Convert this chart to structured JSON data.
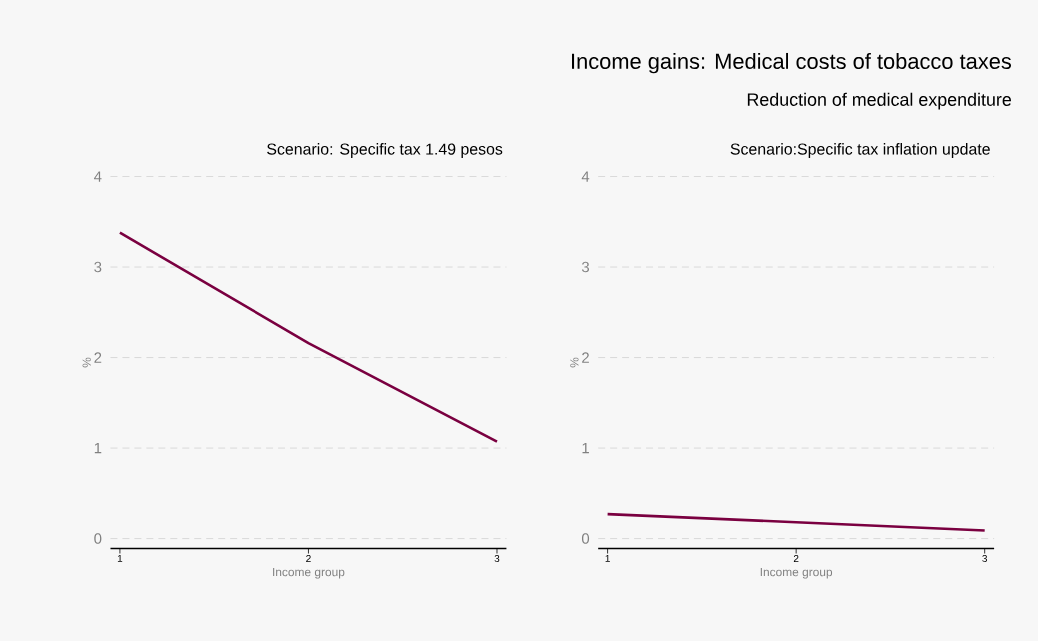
{
  "chart_data": [
    {
      "type": "line",
      "title": "Scenario: Specific tax 1.49 pesos",
      "annotations": [
        "Income gains: Medical costs of tobacco taxes",
        "Reduction of medical expenditure"
      ],
      "xlabel": "Income group",
      "ylabel": "%",
      "x": [
        1,
        2,
        3
      ],
      "xlim": [
        0.95,
        3.05
      ],
      "xticks": [
        1,
        2,
        3
      ],
      "ylim": [
        -0.11,
        4
      ],
      "yticks": [
        0,
        1,
        2,
        3,
        4
      ],
      "grid": "y",
      "line_style": "solid",
      "marker": "none",
      "series": [
        {
          "color": "#7a0040",
          "values": [
            3.38,
            2.16,
            1.07
          ]
        }
      ]
    },
    {
      "type": "line",
      "title": "Scenario:Specific tax inflation update",
      "xlabel": "Income group",
      "ylabel": "%",
      "x": [
        1,
        2,
        3
      ],
      "xlim": [
        0.95,
        3.05
      ],
      "xticks": [
        1,
        2,
        3
      ],
      "ylim": [
        -0.11,
        4
      ],
      "yticks": [
        0,
        1,
        2,
        3,
        4
      ],
      "grid": "y",
      "line_style": "solid",
      "marker": "none",
      "series": [
        {
          "color": "#7a0040",
          "values": [
            0.27,
            0.18,
            0.09
          ]
        }
      ]
    }
  ]
}
